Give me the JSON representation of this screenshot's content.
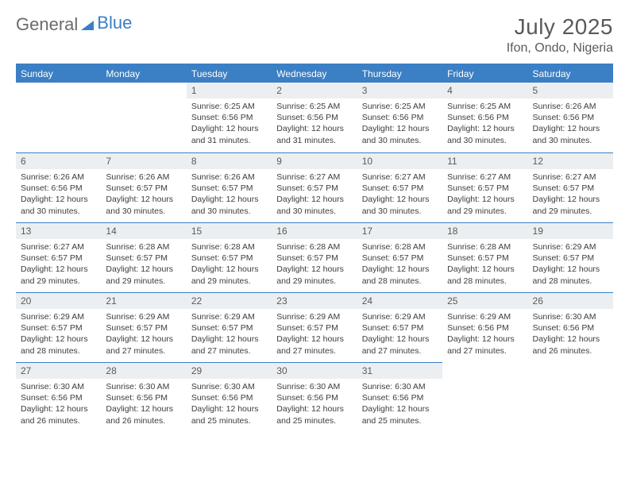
{
  "brand": {
    "part1": "General",
    "part2": "Blue"
  },
  "title": "July 2025",
  "location": "Ifon, Ondo, Nigeria",
  "colors": {
    "accent": "#3b7fc4",
    "header_text": "#ffffff",
    "daynum_bg": "#eceff1",
    "text": "#3d3d3d"
  },
  "weekdays": [
    "Sunday",
    "Monday",
    "Tuesday",
    "Wednesday",
    "Thursday",
    "Friday",
    "Saturday"
  ],
  "weeks": [
    [
      null,
      null,
      {
        "n": "1",
        "sr": "Sunrise: 6:25 AM",
        "ss": "Sunset: 6:56 PM",
        "d1": "Daylight: 12 hours",
        "d2": "and 31 minutes."
      },
      {
        "n": "2",
        "sr": "Sunrise: 6:25 AM",
        "ss": "Sunset: 6:56 PM",
        "d1": "Daylight: 12 hours",
        "d2": "and 31 minutes."
      },
      {
        "n": "3",
        "sr": "Sunrise: 6:25 AM",
        "ss": "Sunset: 6:56 PM",
        "d1": "Daylight: 12 hours",
        "d2": "and 30 minutes."
      },
      {
        "n": "4",
        "sr": "Sunrise: 6:25 AM",
        "ss": "Sunset: 6:56 PM",
        "d1": "Daylight: 12 hours",
        "d2": "and 30 minutes."
      },
      {
        "n": "5",
        "sr": "Sunrise: 6:26 AM",
        "ss": "Sunset: 6:56 PM",
        "d1": "Daylight: 12 hours",
        "d2": "and 30 minutes."
      }
    ],
    [
      {
        "n": "6",
        "sr": "Sunrise: 6:26 AM",
        "ss": "Sunset: 6:56 PM",
        "d1": "Daylight: 12 hours",
        "d2": "and 30 minutes."
      },
      {
        "n": "7",
        "sr": "Sunrise: 6:26 AM",
        "ss": "Sunset: 6:57 PM",
        "d1": "Daylight: 12 hours",
        "d2": "and 30 minutes."
      },
      {
        "n": "8",
        "sr": "Sunrise: 6:26 AM",
        "ss": "Sunset: 6:57 PM",
        "d1": "Daylight: 12 hours",
        "d2": "and 30 minutes."
      },
      {
        "n": "9",
        "sr": "Sunrise: 6:27 AM",
        "ss": "Sunset: 6:57 PM",
        "d1": "Daylight: 12 hours",
        "d2": "and 30 minutes."
      },
      {
        "n": "10",
        "sr": "Sunrise: 6:27 AM",
        "ss": "Sunset: 6:57 PM",
        "d1": "Daylight: 12 hours",
        "d2": "and 30 minutes."
      },
      {
        "n": "11",
        "sr": "Sunrise: 6:27 AM",
        "ss": "Sunset: 6:57 PM",
        "d1": "Daylight: 12 hours",
        "d2": "and 29 minutes."
      },
      {
        "n": "12",
        "sr": "Sunrise: 6:27 AM",
        "ss": "Sunset: 6:57 PM",
        "d1": "Daylight: 12 hours",
        "d2": "and 29 minutes."
      }
    ],
    [
      {
        "n": "13",
        "sr": "Sunrise: 6:27 AM",
        "ss": "Sunset: 6:57 PM",
        "d1": "Daylight: 12 hours",
        "d2": "and 29 minutes."
      },
      {
        "n": "14",
        "sr": "Sunrise: 6:28 AM",
        "ss": "Sunset: 6:57 PM",
        "d1": "Daylight: 12 hours",
        "d2": "and 29 minutes."
      },
      {
        "n": "15",
        "sr": "Sunrise: 6:28 AM",
        "ss": "Sunset: 6:57 PM",
        "d1": "Daylight: 12 hours",
        "d2": "and 29 minutes."
      },
      {
        "n": "16",
        "sr": "Sunrise: 6:28 AM",
        "ss": "Sunset: 6:57 PM",
        "d1": "Daylight: 12 hours",
        "d2": "and 29 minutes."
      },
      {
        "n": "17",
        "sr": "Sunrise: 6:28 AM",
        "ss": "Sunset: 6:57 PM",
        "d1": "Daylight: 12 hours",
        "d2": "and 28 minutes."
      },
      {
        "n": "18",
        "sr": "Sunrise: 6:28 AM",
        "ss": "Sunset: 6:57 PM",
        "d1": "Daylight: 12 hours",
        "d2": "and 28 minutes."
      },
      {
        "n": "19",
        "sr": "Sunrise: 6:29 AM",
        "ss": "Sunset: 6:57 PM",
        "d1": "Daylight: 12 hours",
        "d2": "and 28 minutes."
      }
    ],
    [
      {
        "n": "20",
        "sr": "Sunrise: 6:29 AM",
        "ss": "Sunset: 6:57 PM",
        "d1": "Daylight: 12 hours",
        "d2": "and 28 minutes."
      },
      {
        "n": "21",
        "sr": "Sunrise: 6:29 AM",
        "ss": "Sunset: 6:57 PM",
        "d1": "Daylight: 12 hours",
        "d2": "and 27 minutes."
      },
      {
        "n": "22",
        "sr": "Sunrise: 6:29 AM",
        "ss": "Sunset: 6:57 PM",
        "d1": "Daylight: 12 hours",
        "d2": "and 27 minutes."
      },
      {
        "n": "23",
        "sr": "Sunrise: 6:29 AM",
        "ss": "Sunset: 6:57 PM",
        "d1": "Daylight: 12 hours",
        "d2": "and 27 minutes."
      },
      {
        "n": "24",
        "sr": "Sunrise: 6:29 AM",
        "ss": "Sunset: 6:57 PM",
        "d1": "Daylight: 12 hours",
        "d2": "and 27 minutes."
      },
      {
        "n": "25",
        "sr": "Sunrise: 6:29 AM",
        "ss": "Sunset: 6:56 PM",
        "d1": "Daylight: 12 hours",
        "d2": "and 27 minutes."
      },
      {
        "n": "26",
        "sr": "Sunrise: 6:30 AM",
        "ss": "Sunset: 6:56 PM",
        "d1": "Daylight: 12 hours",
        "d2": "and 26 minutes."
      }
    ],
    [
      {
        "n": "27",
        "sr": "Sunrise: 6:30 AM",
        "ss": "Sunset: 6:56 PM",
        "d1": "Daylight: 12 hours",
        "d2": "and 26 minutes."
      },
      {
        "n": "28",
        "sr": "Sunrise: 6:30 AM",
        "ss": "Sunset: 6:56 PM",
        "d1": "Daylight: 12 hours",
        "d2": "and 26 minutes."
      },
      {
        "n": "29",
        "sr": "Sunrise: 6:30 AM",
        "ss": "Sunset: 6:56 PM",
        "d1": "Daylight: 12 hours",
        "d2": "and 25 minutes."
      },
      {
        "n": "30",
        "sr": "Sunrise: 6:30 AM",
        "ss": "Sunset: 6:56 PM",
        "d1": "Daylight: 12 hours",
        "d2": "and 25 minutes."
      },
      {
        "n": "31",
        "sr": "Sunrise: 6:30 AM",
        "ss": "Sunset: 6:56 PM",
        "d1": "Daylight: 12 hours",
        "d2": "and 25 minutes."
      },
      null,
      null
    ]
  ]
}
